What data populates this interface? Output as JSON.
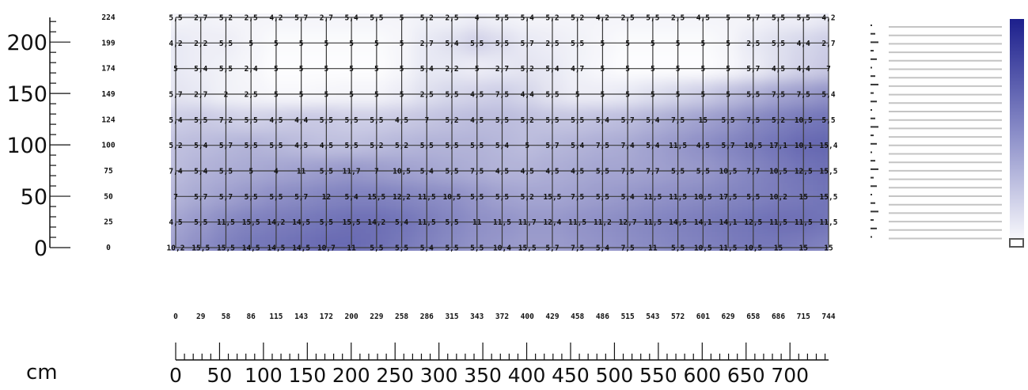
{
  "unit_label": "cm",
  "chart_data": {
    "type": "heatmap",
    "x_ticks": [
      0,
      50,
      100,
      150,
      200,
      250,
      300,
      350,
      400,
      450,
      500,
      550,
      600,
      650,
      700
    ],
    "x_positions": [
      0,
      29,
      58,
      86,
      115,
      143,
      172,
      200,
      229,
      258,
      286,
      315,
      343,
      372,
      400,
      429,
      458,
      486,
      515,
      543,
      572,
      601,
      629,
      658,
      686,
      715,
      744
    ],
    "y_ticks": [
      0,
      50,
      100,
      150,
      200
    ],
    "y_positions": [
      224,
      199,
      174,
      149,
      124,
      100,
      75,
      50,
      25,
      0
    ],
    "xlim": [
      0,
      744
    ],
    "ylim": [
      0,
      224
    ],
    "colorscale": [
      "#ffffff",
      "#1c1f8c"
    ],
    "values": [
      [
        "5,5",
        "2,7",
        "5,2",
        "2,5",
        "4,2",
        "5,7",
        "2,7",
        "5,4",
        "5,5",
        "5",
        "5,2",
        "2,5",
        "4",
        "5,5",
        "5,4",
        "5,2",
        "5,2",
        "4,2",
        "2,5",
        "5,5",
        "2,5",
        "4,5",
        "5",
        "5,7",
        "5,5",
        "5,5",
        "4,2"
      ],
      [
        "4,2",
        "2,2",
        "5,5",
        "5",
        "5",
        "5",
        "5",
        "5",
        "5",
        "5",
        "2,7",
        "5,4",
        "5,5",
        "5,5",
        "5,7",
        "2,5",
        "5,5",
        "5",
        "5",
        "5",
        "5",
        "5",
        "5",
        "2,5",
        "5,5",
        "4,4",
        "2,7"
      ],
      [
        "5",
        "5,4",
        "5,5",
        "2,4",
        "5",
        "5",
        "5",
        "5",
        "5",
        "5",
        "5,4",
        "2,2",
        "5",
        "2,7",
        "5,2",
        "5,4",
        "4,7",
        "5",
        "5",
        "5",
        "5",
        "5",
        "5",
        "5,7",
        "4,5",
        "4,4",
        "7"
      ],
      [
        "5,7",
        "2,7",
        "2",
        "2,5",
        "5",
        "5",
        "5",
        "5",
        "5",
        "5",
        "2,5",
        "5,5",
        "4,5",
        "7,5",
        "4,4",
        "5,5",
        "5",
        "5",
        "5",
        "5",
        "5",
        "5",
        "5",
        "5,5",
        "7,5",
        "7,5",
        "5,4"
      ],
      [
        "5,4",
        "5,5",
        "7,2",
        "5,5",
        "4,5",
        "4,4",
        "5,5",
        "5,5",
        "5,5",
        "4,5",
        "7",
        "5,2",
        "4,5",
        "5,5",
        "5,2",
        "5,5",
        "5,5",
        "5,4",
        "5,7",
        "5,4",
        "7,5",
        "15",
        "5,5",
        "7,5",
        "5,2",
        "10,5",
        "5,5"
      ],
      [
        "5,2",
        "5,4",
        "5,7",
        "5,5",
        "5,5",
        "4,5",
        "4,5",
        "5,5",
        "5,2",
        "5,2",
        "5,5",
        "5,5",
        "5,5",
        "5,4",
        "5",
        "5,7",
        "5,4",
        "7,5",
        "7,4",
        "5,4",
        "11,5",
        "4,5",
        "5,7",
        "10,5",
        "17,1",
        "10,1",
        "15,4"
      ],
      [
        "7,4",
        "5,4",
        "5,5",
        "5",
        "4",
        "11",
        "5,5",
        "11,7",
        "7",
        "10,5",
        "5,4",
        "5,5",
        "7,5",
        "4,5",
        "4,5",
        "4,5",
        "4,5",
        "5,5",
        "7,5",
        "7,7",
        "5,5",
        "5,5",
        "10,5",
        "7,7",
        "10,5",
        "12,5",
        "15,5"
      ],
      [
        "7",
        "5,7",
        "5,7",
        "5,5",
        "5,5",
        "5,7",
        "12",
        "5,4",
        "15,5",
        "12,2",
        "11,5",
        "10,5",
        "5,5",
        "5,5",
        "5,2",
        "15,5",
        "7,5",
        "5,5",
        "5,4",
        "11,5",
        "11,5",
        "10,5",
        "17,5",
        "5,5",
        "10,2",
        "15",
        "15,5"
      ],
      [
        "4,5",
        "5,5",
        "11,5",
        "15,5",
        "14,2",
        "14,5",
        "5,5",
        "15,5",
        "14,2",
        "5,4",
        "11,5",
        "5,5",
        "11",
        "11,5",
        "11,7",
        "12,4",
        "11,5",
        "11,2",
        "12,7",
        "11,5",
        "14,5",
        "14,1",
        "14,1",
        "12,5",
        "11,5",
        "11,5",
        "11,5"
      ],
      [
        "10,2",
        "15,5",
        "15,5",
        "14,5",
        "14,5",
        "14,5",
        "10,7",
        "11",
        "5,5",
        "5,5",
        "5,4",
        "5,5",
        "5,5",
        "10,4",
        "15,5",
        "5,7",
        "7,5",
        "5,4",
        "7,5",
        "11",
        "5,5",
        "10,5",
        "11,5",
        "10,5",
        "15",
        "15",
        "15"
      ]
    ],
    "intensity": [
      [
        0.05,
        0.06,
        0.05,
        0.05,
        0.05,
        0.05,
        0.05,
        0.05,
        0.05,
        0.05,
        0.06,
        0.06,
        0.08,
        0.06,
        0.05,
        0.05,
        0.05,
        0.05,
        0.05,
        0.05,
        0.05,
        0.05,
        0.05,
        0.05,
        0.07,
        0.07,
        0.1
      ],
      [
        0.1,
        0.08,
        0.08,
        0.05,
        0.02,
        0.02,
        0.02,
        0.02,
        0.02,
        0.04,
        0.1,
        0.14,
        0.2,
        0.15,
        0.1,
        0.08,
        0.06,
        0.04,
        0.02,
        0.02,
        0.02,
        0.02,
        0.04,
        0.1,
        0.14,
        0.18,
        0.22
      ],
      [
        0.1,
        0.08,
        0.06,
        0.04,
        0.01,
        0.01,
        0.01,
        0.01,
        0.01,
        0.04,
        0.1,
        0.1,
        0.08,
        0.1,
        0.12,
        0.1,
        0.06,
        0.03,
        0.01,
        0.01,
        0.01,
        0.01,
        0.03,
        0.08,
        0.14,
        0.2,
        0.24
      ],
      [
        0.12,
        0.1,
        0.06,
        0.05,
        0.03,
        0.03,
        0.04,
        0.05,
        0.05,
        0.08,
        0.14,
        0.18,
        0.2,
        0.22,
        0.18,
        0.12,
        0.08,
        0.08,
        0.1,
        0.14,
        0.18,
        0.22,
        0.28,
        0.34,
        0.4,
        0.44,
        0.48
      ],
      [
        0.22,
        0.24,
        0.22,
        0.2,
        0.22,
        0.24,
        0.24,
        0.22,
        0.22,
        0.24,
        0.26,
        0.28,
        0.3,
        0.3,
        0.28,
        0.26,
        0.26,
        0.28,
        0.3,
        0.34,
        0.38,
        0.42,
        0.46,
        0.52,
        0.56,
        0.6,
        0.62
      ],
      [
        0.28,
        0.3,
        0.32,
        0.34,
        0.32,
        0.3,
        0.28,
        0.28,
        0.3,
        0.32,
        0.34,
        0.34,
        0.34,
        0.32,
        0.3,
        0.32,
        0.34,
        0.36,
        0.38,
        0.42,
        0.46,
        0.5,
        0.54,
        0.58,
        0.62,
        0.66,
        0.68
      ],
      [
        0.3,
        0.34,
        0.36,
        0.38,
        0.4,
        0.42,
        0.44,
        0.46,
        0.44,
        0.42,
        0.4,
        0.38,
        0.36,
        0.34,
        0.34,
        0.36,
        0.38,
        0.4,
        0.4,
        0.42,
        0.44,
        0.46,
        0.5,
        0.54,
        0.58,
        0.62,
        0.64
      ],
      [
        0.34,
        0.38,
        0.42,
        0.46,
        0.5,
        0.52,
        0.54,
        0.56,
        0.56,
        0.54,
        0.52,
        0.5,
        0.46,
        0.42,
        0.4,
        0.4,
        0.42,
        0.44,
        0.46,
        0.48,
        0.5,
        0.52,
        0.54,
        0.56,
        0.58,
        0.6,
        0.62
      ],
      [
        0.4,
        0.46,
        0.52,
        0.56,
        0.58,
        0.6,
        0.62,
        0.64,
        0.64,
        0.62,
        0.58,
        0.54,
        0.5,
        0.48,
        0.46,
        0.46,
        0.48,
        0.5,
        0.52,
        0.54,
        0.56,
        0.58,
        0.6,
        0.62,
        0.64,
        0.64,
        0.62
      ],
      [
        0.44,
        0.5,
        0.56,
        0.6,
        0.62,
        0.64,
        0.66,
        0.66,
        0.64,
        0.6,
        0.56,
        0.52,
        0.48,
        0.46,
        0.44,
        0.44,
        0.46,
        0.48,
        0.5,
        0.52,
        0.54,
        0.56,
        0.58,
        0.6,
        0.6,
        0.58,
        0.56
      ]
    ]
  }
}
